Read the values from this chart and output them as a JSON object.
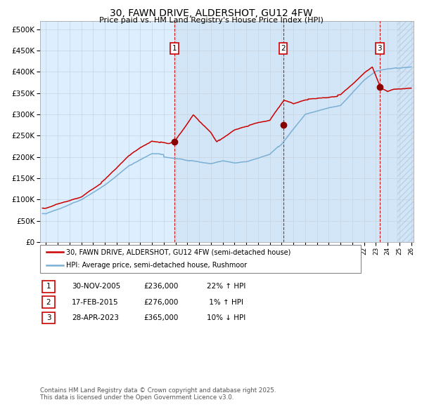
{
  "title": "30, FAWN DRIVE, ALDERSHOT, GU12 4FW",
  "subtitle": "Price paid vs. HM Land Registry's House Price Index (HPI)",
  "legend_line1": "30, FAWN DRIVE, ALDERSHOT, GU12 4FW (semi-detached house)",
  "legend_line2": "HPI: Average price, semi-detached house, Rushmoor",
  "transactions": [
    {
      "label": "1",
      "date": "30-NOV-2005",
      "price": 236000,
      "hpi_rel": "22% ↑ HPI",
      "x": 2005.92
    },
    {
      "label": "2",
      "date": "17-FEB-2015",
      "price": 276000,
      "hpi_rel": "1% ↑ HPI",
      "x": 2015.13
    },
    {
      "label": "3",
      "date": "28-APR-2023",
      "price": 365000,
      "hpi_rel": "10% ↓ HPI",
      "x": 2023.33
    }
  ],
  "transaction_prices": [
    236000,
    276000,
    365000
  ],
  "red_line_color": "#cc0000",
  "blue_line_color": "#7bafd4",
  "marker_color": "#880000",
  "vline_color": "#cc0000",
  "bg_shade_color": "#ddeeff",
  "hatch_color": "#b0c8e0",
  "grid_color": "#c8d4e0",
  "footnote": "Contains HM Land Registry data © Crown copyright and database right 2025.\nThis data is licensed under the Open Government Licence v3.0.",
  "xmin": 1994.5,
  "xmax": 2026.2,
  "ymin": 0,
  "ymax": 520000,
  "yticks": [
    0,
    50000,
    100000,
    150000,
    200000,
    250000,
    300000,
    350000,
    400000,
    450000,
    500000
  ]
}
